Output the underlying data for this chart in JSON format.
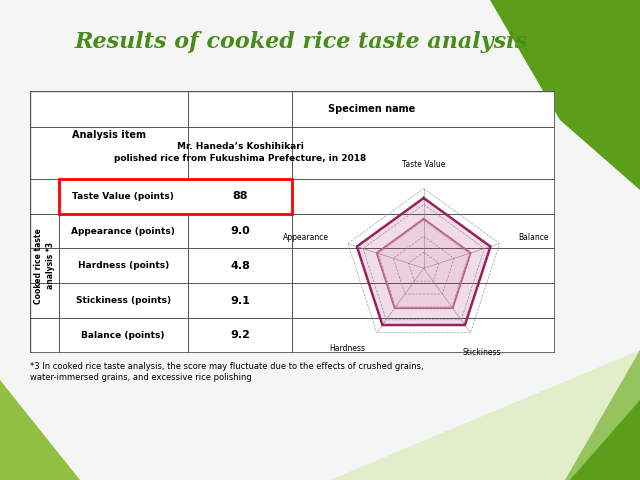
{
  "title": "Results of cooked rice taste analysis",
  "title_color": "#4a8c1c",
  "title_fontsize": 16,
  "specimen_name": "Specimen name",
  "specimen_value": "Mr. Haneda’s Koshihikari\npolished rice from Fukushima Prefecture, in 2018",
  "row_header": "Cooked rice taste\nanalysis *3",
  "analysis_item_label": "Analysis item",
  "rows": [
    {
      "label": "Taste Value (points)",
      "value": "88",
      "highlight": true
    },
    {
      "label": "Appearance (points)",
      "value": "9.0",
      "highlight": false
    },
    {
      "label": "Hardness (points)",
      "value": "4.8",
      "highlight": false
    },
    {
      "label": "Stickiness (points)",
      "value": "9.1",
      "highlight": false
    },
    {
      "label": "Balance (points)",
      "value": "9.2",
      "highlight": false
    }
  ],
  "radar_labels": [
    "Taste Value",
    "Balance",
    "Stickiness",
    "Hardness",
    "Appearance"
  ],
  "radar_outer_color": "#9b2060",
  "radar_inner_color": "#c06080",
  "footnote": "*3 In cooked rice taste analysis, the score may fluctuate due to the effects of crushed grains,\nwater-immersed grains, and excessive rice polishing",
  "bg_color": "#f5f5f5",
  "green_dark": "#5a9e1a",
  "green_light": "#8fc040"
}
